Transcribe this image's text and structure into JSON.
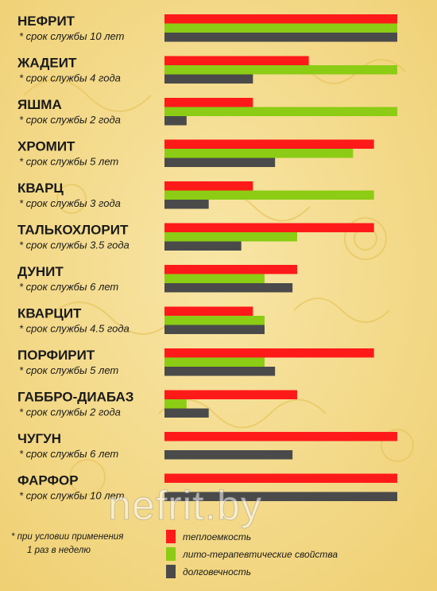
{
  "chart_data": {
    "type": "bar",
    "orientation": "horizontal",
    "xlim": [
      0,
      10
    ],
    "colors": {
      "heat": "#ff1a1a",
      "therapy": "#8ccc14",
      "durability": "#4a4a4a"
    },
    "stones": [
      {
        "name": "НЕФРИТ",
        "life": "* срок службы 10 лет",
        "heat": 10,
        "therapy": 10,
        "durability": 10
      },
      {
        "name": "ЖАДЕИТ",
        "life": "* срок службы 4 года",
        "heat": 6.2,
        "therapy": 10,
        "durability": 3.8
      },
      {
        "name": "ЯШМА",
        "life": "* срок службы  2 года",
        "heat": 3.8,
        "therapy": 10,
        "durability": 0.95
      },
      {
        "name": "ХРОМИТ",
        "life": "* срок службы  5 лет",
        "heat": 9,
        "therapy": 8.1,
        "durability": 4.75
      },
      {
        "name": "КВАРЦ",
        "life": "* срок службы  3 года",
        "heat": 3.8,
        "therapy": 9,
        "durability": 1.9
      },
      {
        "name": "ТАЛЬКОХЛОРИТ",
        "life": "* срок службы  3.5 года",
        "heat": 9,
        "therapy": 5.7,
        "durability": 3.3
      },
      {
        "name": "ДУНИТ",
        "life": "* срок службы 6 лет",
        "heat": 5.7,
        "therapy": 4.3,
        "durability": 5.5
      },
      {
        "name": "КВАРЦИТ",
        "life": "* срок службы 4.5 года",
        "heat": 3.8,
        "therapy": 4.3,
        "durability": 4.3
      },
      {
        "name": "ПОРФИРИТ",
        "life": "* срок службы 5 лет",
        "heat": 9,
        "therapy": 4.3,
        "durability": 4.75
      },
      {
        "name": "ГАББРО-ДИАБАЗ",
        "life": "* срок службы  2 года",
        "heat": 5.7,
        "therapy": 0.95,
        "durability": 1.9
      },
      {
        "name": "ЧУГУН",
        "life": "* срок службы  6 лет",
        "heat": 10,
        "therapy": 0,
        "durability": 5.5
      },
      {
        "name": "ФАРФОР",
        "life": "* срок службы 10 лет",
        "heat": 10,
        "therapy": 0,
        "durability": 10
      }
    ],
    "legend": [
      {
        "key": "heat",
        "label": "теплоемкость"
      },
      {
        "key": "therapy",
        "label": "лито-терапевтические свойства"
      },
      {
        "key": "durability",
        "label": "долговечность"
      }
    ],
    "footnote_line1": "*  при условии применения",
    "footnote_line2": "1 раз в неделю"
  },
  "watermark": "nefrit.by"
}
